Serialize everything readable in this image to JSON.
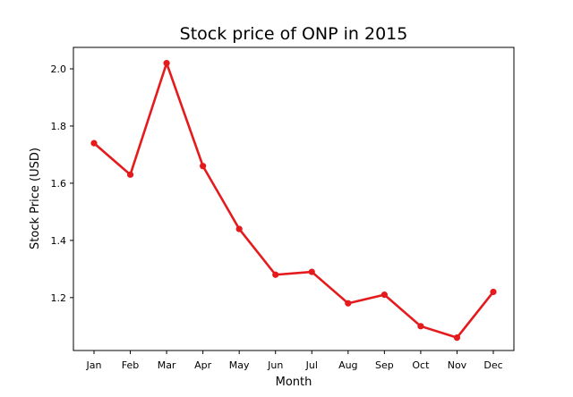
{
  "chart_data": {
    "type": "line",
    "title": "Stock price of ONP in 2015",
    "xlabel": "Month",
    "ylabel": "Stock Price (USD)",
    "categories": [
      "Jan",
      "Feb",
      "Mar",
      "Apr",
      "May",
      "Jun",
      "Jul",
      "Aug",
      "Sep",
      "Oct",
      "Nov",
      "Dec"
    ],
    "series": [
      {
        "values": [
          1.74,
          1.63,
          2.02,
          1.66,
          1.44,
          1.28,
          1.29,
          1.18,
          1.21,
          1.1,
          1.06,
          1.22
        ],
        "color": "#e41a1c"
      }
    ],
    "yticks": [
      "1.2",
      "1.4",
      "1.6",
      "1.8",
      "2.0"
    ],
    "ylim": [
      1.015,
      2.075
    ],
    "grid": false,
    "legend": "none"
  }
}
